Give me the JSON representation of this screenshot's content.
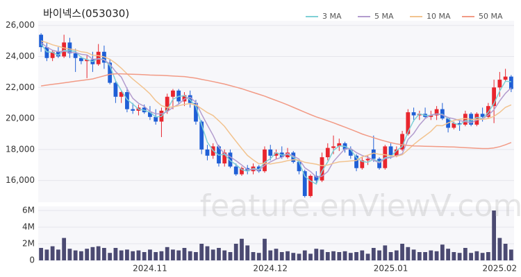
{
  "chart_data": [
    {
      "type": "candlestick",
      "title": "바이넥스(053030)",
      "open": [
        25400,
        24600,
        23900,
        24300,
        24000,
        24900,
        24200,
        23900,
        23700,
        23800,
        23500,
        24300,
        23600,
        22300,
        21400,
        21700,
        20600,
        20500,
        20700,
        20400,
        20100,
        19800,
        20500,
        21400,
        21800,
        21100,
        21500,
        21000,
        19800,
        18000,
        17600,
        18200,
        17100,
        17800,
        16900,
        16400,
        16800,
        16600,
        16900,
        16600,
        18000,
        17600,
        17800,
        17500,
        17800,
        17200,
        16600,
        15000,
        16300,
        16000,
        17500,
        18100,
        18200,
        18400,
        18000,
        17600,
        16800,
        17300,
        18000,
        17400,
        16800,
        18200,
        17600,
        18000,
        19000,
        20400,
        20200,
        20300,
        20100,
        20200,
        20600,
        20000,
        19400,
        19700,
        19600,
        20300,
        19600,
        20300,
        20100,
        20800,
        22000,
        22500,
        22700
      ],
      "high": [
        25500,
        24900,
        24400,
        24600,
        25400,
        25200,
        24500,
        24000,
        24100,
        24300,
        24800,
        24700,
        23800,
        22400,
        21800,
        22000,
        21000,
        20900,
        20900,
        20800,
        20600,
        20700,
        21600,
        21900,
        21900,
        21700,
        21800,
        21200,
        19900,
        18300,
        18400,
        18300,
        18000,
        18000,
        17100,
        16900,
        17000,
        17100,
        17000,
        18200,
        18300,
        18000,
        18200,
        18100,
        17900,
        17300,
        16700,
        16400,
        16600,
        17800,
        18400,
        18900,
        18700,
        18500,
        18200,
        17700,
        17500,
        17600,
        18900,
        17500,
        18300,
        18400,
        18200,
        19200,
        20600,
        20700,
        20500,
        20700,
        20500,
        20800,
        21000,
        20100,
        19800,
        19900,
        20500,
        20400,
        20400,
        20700,
        21000,
        22500,
        23000,
        23200,
        22800
      ],
      "low": [
        24300,
        23700,
        23700,
        23900,
        23900,
        23900,
        23000,
        23500,
        22600,
        23000,
        23400,
        23200,
        22200,
        21000,
        21000,
        20400,
        20300,
        20200,
        20300,
        19900,
        19600,
        18800,
        20300,
        20600,
        20900,
        20800,
        20700,
        19600,
        17700,
        17300,
        17400,
        16900,
        16900,
        16800,
        16300,
        16300,
        16400,
        16400,
        16500,
        16500,
        17300,
        17400,
        17400,
        17400,
        17100,
        16400,
        14900,
        14900,
        15800,
        15900,
        17300,
        17700,
        17900,
        17800,
        17400,
        16600,
        16700,
        17000,
        17200,
        16700,
        16700,
        17400,
        17500,
        17900,
        18900,
        19800,
        19900,
        20000,
        19900,
        19900,
        19900,
        19100,
        19300,
        19200,
        19500,
        19500,
        19500,
        19800,
        20000,
        19700,
        21400,
        22400,
        21700
      ],
      "close": [
        24600,
        23900,
        24300,
        24000,
        24900,
        24200,
        23900,
        23700,
        23800,
        23500,
        24300,
        23600,
        22300,
        21400,
        21700,
        20600,
        20500,
        20700,
        20400,
        20100,
        19800,
        20500,
        21400,
        21800,
        21100,
        21500,
        21000,
        19800,
        18000,
        17600,
        18200,
        17100,
        17800,
        16900,
        16400,
        16800,
        16600,
        16900,
        16600,
        18000,
        17600,
        17800,
        17500,
        17800,
        17200,
        16600,
        15000,
        16300,
        16000,
        17500,
        18100,
        18200,
        18400,
        18000,
        17600,
        16800,
        17300,
        17400,
        17400,
        16800,
        18200,
        17600,
        18000,
        19000,
        20400,
        20200,
        20300,
        20100,
        20200,
        20600,
        20000,
        19400,
        19700,
        19600,
        20300,
        19600,
        20300,
        20100,
        20800,
        22000,
        22500,
        22700,
        21900
      ],
      "up_color": "#e8262e",
      "down_color": "#1f5fd6",
      "series": [
        {
          "name": "3 MA",
          "color": "#7fd0d6",
          "values": [
            24800,
            24300,
            24270,
            24070,
            24400,
            24370,
            24330,
            23930,
            23800,
            23670,
            23870,
            23800,
            23400,
            22430,
            21800,
            21230,
            20930,
            20600,
            20530,
            20400,
            20100,
            20130,
            20570,
            21230,
            21430,
            21470,
            21200,
            20770,
            19600,
            18470,
            17930,
            17630,
            17700,
            17270,
            17030,
            16700,
            16600,
            16770,
            16700,
            17170,
            17400,
            17800,
            17630,
            17700,
            17500,
            17200,
            16270,
            15970,
            15770,
            16600,
            17200,
            17930,
            18230,
            18200,
            18000,
            17470,
            17230,
            17170,
            17370,
            17200,
            17470,
            17530,
            17930,
            18200,
            19130,
            19870,
            20300,
            20200,
            20200,
            20300,
            20270,
            20000,
            19700,
            19570,
            19870,
            19830,
            20070,
            20000,
            20400,
            20970,
            21770,
            22400,
            22370
          ]
        },
        {
          "name": "5 MA",
          "color": "#b39cce",
          "values": [
            24900,
            24600,
            24400,
            24300,
            24340,
            24260,
            24260,
            24140,
            24100,
            23820,
            23840,
            23780,
            23500,
            23020,
            22660,
            21920,
            21300,
            20980,
            20780,
            20460,
            20300,
            20300,
            20440,
            20720,
            20920,
            21260,
            21360,
            21040,
            20280,
            19580,
            18920,
            18140,
            17740,
            17520,
            17280,
            17000,
            16700,
            16720,
            16660,
            16980,
            17200,
            17380,
            17500,
            17740,
            17580,
            17380,
            16820,
            16580,
            16220,
            16280,
            16580,
            17220,
            17640,
            18040,
            18060,
            17800,
            17620,
            17500,
            17300,
            17140,
            17420,
            17480,
            17600,
            17720,
            18640,
            19040,
            19580,
            20000,
            20240,
            20280,
            20240,
            20060,
            19980,
            19860,
            19800,
            19720,
            19900,
            19980,
            20220,
            20560,
            21140,
            21620,
            21980
          ]
        },
        {
          "name": "10 MA",
          "color": "#f2c38f",
          "values": [
            25000,
            24900,
            24750,
            24650,
            24550,
            24480,
            24420,
            24300,
            24250,
            24080,
            24050,
            23970,
            23820,
            23560,
            23240,
            22880,
            22540,
            22240,
            21930,
            21590,
            21140,
            20830,
            20710,
            20750,
            20820,
            20910,
            20960,
            20870,
            20630,
            20380,
            20190,
            19850,
            19490,
            19000,
            18530,
            18060,
            17620,
            17330,
            17080,
            17120,
            17060,
            17130,
            17190,
            17280,
            17340,
            17320,
            17170,
            17110,
            17050,
            16950,
            17000,
            17110,
            17200,
            17220,
            17260,
            17290,
            17520,
            17630,
            17770,
            17690,
            17660,
            17600,
            17560,
            17660,
            17980,
            18320,
            18620,
            18890,
            19170,
            19550,
            19530,
            19710,
            19880,
            19940,
            20000,
            19940,
            19940,
            19940,
            20000,
            20140,
            20390,
            20720,
            20880
          ]
        },
        {
          "name": "50 MA",
          "color": "#f29a85",
          "values": [
            22100,
            22150,
            22200,
            22250,
            22300,
            22350,
            22400,
            22450,
            22500,
            22550,
            22650,
            22750,
            22850,
            22880,
            22880,
            22860,
            22850,
            22840,
            22820,
            22800,
            22790,
            22780,
            22760,
            22740,
            22720,
            22700,
            22650,
            22600,
            22520,
            22450,
            22380,
            22300,
            22220,
            22120,
            22020,
            21920,
            21800,
            21680,
            21560,
            21440,
            21300,
            21160,
            21020,
            20880,
            20720,
            20560,
            20400,
            20250,
            20100,
            19980,
            19850,
            19720,
            19580,
            19440,
            19300,
            19150,
            19000,
            18880,
            18760,
            18640,
            18540,
            18440,
            18360,
            18300,
            18260,
            18230,
            18220,
            18210,
            18200,
            18190,
            18180,
            18170,
            18160,
            18140,
            18120,
            18100,
            18080,
            18060,
            18060,
            18100,
            18180,
            18300,
            18450
          ]
        }
      ],
      "ylim": [
        14600,
        26300
      ],
      "yticks": [
        {
          "value": 16000,
          "label": "16,000"
        },
        {
          "value": 18000,
          "label": "18,000"
        },
        {
          "value": 20000,
          "label": "20,000"
        },
        {
          "value": 22000,
          "label": "22,000"
        },
        {
          "value": 24000,
          "label": "24,000"
        },
        {
          "value": 26000,
          "label": "26,000"
        }
      ],
      "grid": true,
      "legend": "upper right"
    },
    {
      "type": "bar",
      "watermark": "feature.enViewV.com",
      "categories": [
        null,
        null,
        null,
        null,
        null,
        null,
        null,
        null,
        null,
        null,
        null,
        null,
        null,
        null,
        null,
        null,
        null,
        null,
        null,
        "2024.11",
        null,
        null,
        null,
        null,
        null,
        null,
        null,
        null,
        null,
        null,
        null,
        null,
        null,
        null,
        null,
        null,
        null,
        null,
        null,
        null,
        "2024.12",
        null,
        null,
        null,
        null,
        null,
        null,
        null,
        null,
        null,
        null,
        null,
        null,
        null,
        null,
        null,
        null,
        null,
        null,
        null,
        null,
        "2025.01",
        null,
        null,
        null,
        null,
        null,
        null,
        null,
        null,
        null,
        null,
        null,
        null,
        null,
        null,
        null,
        null,
        null,
        null,
        "2025.02",
        null,
        null
      ],
      "values": [
        1500000,
        1300000,
        1700000,
        1300000,
        2700000,
        1400000,
        1200000,
        1100000,
        1400000,
        1600000,
        1700000,
        1500000,
        900000,
        1500000,
        1200000,
        1300000,
        1100000,
        1200000,
        1000000,
        1300000,
        1000000,
        1100000,
        1600000,
        1300000,
        1200000,
        1500000,
        1100000,
        1000000,
        2000000,
        1700000,
        1300000,
        1500000,
        1200000,
        1000000,
        2000000,
        2600000,
        1800000,
        1000000,
        900000,
        2600000,
        1200000,
        1400000,
        1000000,
        1100000,
        900000,
        800000,
        1200000,
        800000,
        1400000,
        1300000,
        1000000,
        1100000,
        1000000,
        1100000,
        900000,
        1000000,
        1200000,
        800000,
        1500000,
        1200000,
        1800000,
        1000000,
        1200000,
        2000000,
        1600000,
        1300000,
        1000000,
        1000000,
        1200000,
        1100000,
        1900000,
        1400000,
        1000000,
        900000,
        1500000,
        900000,
        1100000,
        900000,
        1000000,
        6000000,
        2700000,
        2000000,
        1300000
      ],
      "color": "#4b4a72",
      "ylim": [
        0,
        6500000
      ],
      "yticks": [
        0,
        {
          "value": 2000000,
          "label": "2M"
        },
        {
          "value": 4000000,
          "label": "4M"
        },
        {
          "value": 6000000,
          "label": "6M"
        }
      ],
      "grid": true
    }
  ]
}
